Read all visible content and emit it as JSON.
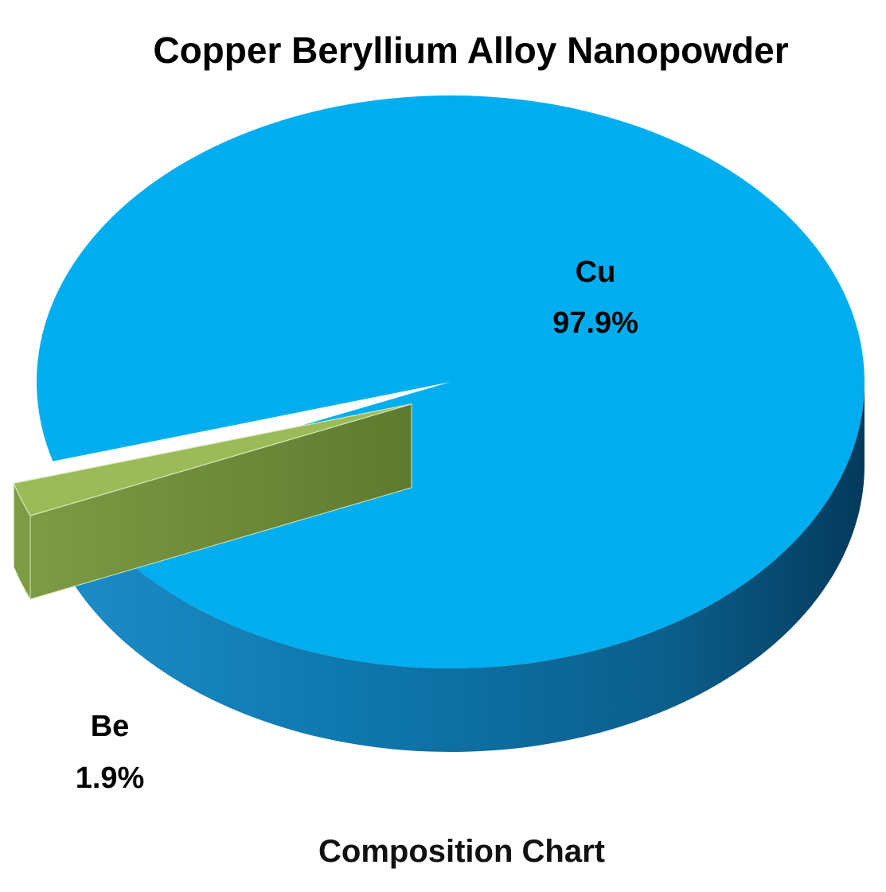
{
  "chart_data": {
    "type": "pie",
    "title": "Copper Beryllium Alloy Nanopowder",
    "subtitle": "Composition Chart",
    "three_d": true,
    "exploded_slice": "Be",
    "slices": [
      {
        "label": "Cu",
        "value": 97.9,
        "value_label": "97.9%",
        "color": "#00AEEF",
        "side_color": "#0C6A99"
      },
      {
        "label": "Be",
        "value": 1.9,
        "value_label": "1.9%",
        "color": "#9BBB59",
        "side_color": "#6E8A3A"
      }
    ],
    "legend": "none"
  }
}
